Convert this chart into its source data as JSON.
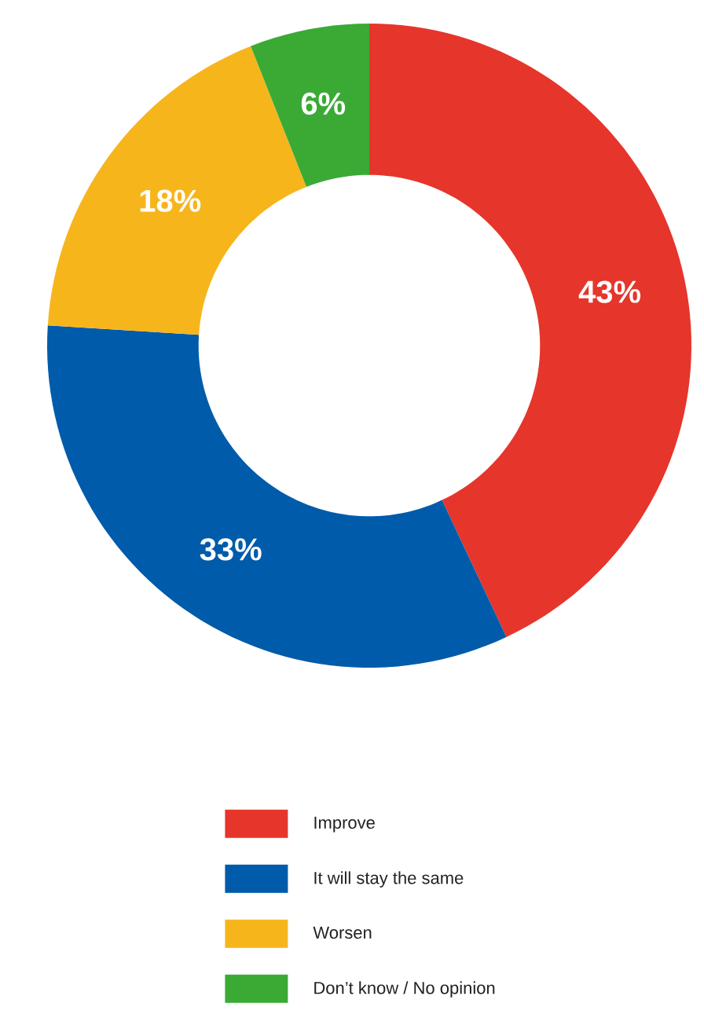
{
  "chart_data": {
    "type": "donut",
    "categories": [
      "Improve",
      "It will stay the same",
      "Worsen",
      "Don’t know / No opinion"
    ],
    "values": [
      43,
      33,
      18,
      6
    ],
    "value_labels": [
      "43%",
      "33%",
      "18%",
      "6%"
    ],
    "colors": [
      "#e6352b",
      "#005baa",
      "#f7b51c",
      "#3aaa35"
    ],
    "legend": "bottom"
  }
}
